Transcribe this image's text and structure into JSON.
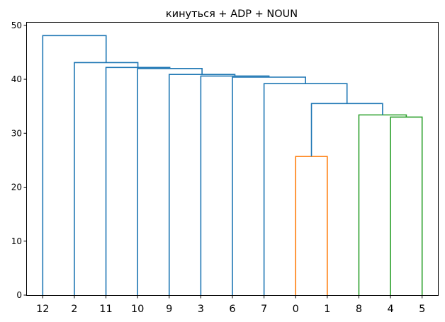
{
  "chart_data": {
    "type": "dendrogram",
    "title": "кинуться + ADP + NOUN",
    "xlabel": "",
    "ylabel": "",
    "ylim": [
      0,
      50.5
    ],
    "y_ticks": [
      0,
      10,
      20,
      30,
      40,
      50
    ],
    "leaves": [
      "12",
      "2",
      "11",
      "10",
      "9",
      "3",
      "6",
      "7",
      "0",
      "1",
      "8",
      "4",
      "5"
    ],
    "colors": {
      "orange": "#ff7f0e",
      "green": "#2ca02c",
      "blue": "#1f77b4"
    },
    "links": [
      {
        "left": 8,
        "right": 9,
        "height": 25.7,
        "left_top": 0,
        "right_top": 0,
        "color": "orange"
      },
      {
        "left": 11,
        "right": 12,
        "height": 33.0,
        "left_top": 0,
        "right_top": 0,
        "color": "green"
      },
      {
        "left": 10,
        "right": 11.5,
        "height": 33.4,
        "left_top": 0,
        "right_top": 33.0,
        "color": "green"
      },
      {
        "left": 8.5,
        "right": 10.75,
        "height": 35.5,
        "left_top": 25.7,
        "right_top": 33.4,
        "color": "blue"
      },
      {
        "left": 7,
        "right": 9.625,
        "height": 39.2,
        "left_top": 0,
        "right_top": 35.5,
        "color": "blue"
      },
      {
        "left": 6,
        "right": 8.3125,
        "height": 40.4,
        "left_top": 0,
        "right_top": 39.2,
        "color": "blue"
      },
      {
        "left": 5,
        "right": 7.15625,
        "height": 40.6,
        "left_top": 0,
        "right_top": 40.4,
        "color": "blue"
      },
      {
        "left": 4,
        "right": 6.078125,
        "height": 40.9,
        "left_top": 0,
        "right_top": 40.6,
        "color": "blue"
      },
      {
        "left": 3,
        "right": 5.0390625,
        "height": 42.0,
        "left_top": 0,
        "right_top": 40.9,
        "color": "blue"
      },
      {
        "left": 2,
        "right": 4.01953125,
        "height": 42.2,
        "left_top": 0,
        "right_top": 42.0,
        "color": "blue"
      },
      {
        "left": 1,
        "right": 3.009765625,
        "height": 43.1,
        "left_top": 0,
        "right_top": 42.2,
        "color": "blue"
      },
      {
        "left": 0,
        "right": 2.0048828125,
        "height": 48.1,
        "left_top": 0,
        "right_top": 43.1,
        "color": "blue"
      }
    ]
  }
}
